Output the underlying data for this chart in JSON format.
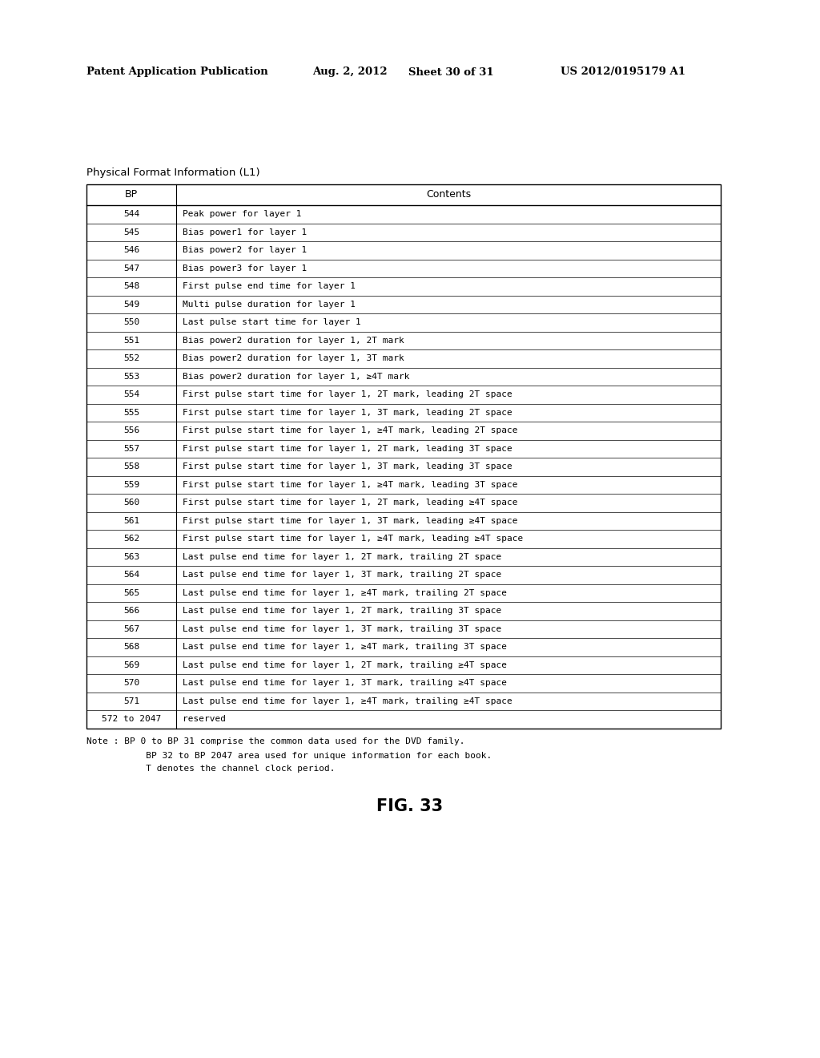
{
  "header_text": "Patent Application Publication",
  "date_text": "Aug. 2, 2012",
  "sheet_text": "Sheet 30 of 31",
  "patent_text": "US 2012/0195179 A1",
  "table_title": "Physical Format Information (L1)",
  "col1_header": "BP",
  "col2_header": "Contents",
  "rows": [
    [
      "544",
      "Peak power for layer 1"
    ],
    [
      "545",
      "Bias power1 for layer 1"
    ],
    [
      "546",
      "Bias power2 for layer 1"
    ],
    [
      "547",
      "Bias power3 for layer 1"
    ],
    [
      "548",
      "First pulse end time for layer 1"
    ],
    [
      "549",
      "Multi pulse duration for layer 1"
    ],
    [
      "550",
      "Last pulse start time for layer 1"
    ],
    [
      "551",
      "Bias power2 duration for layer 1, 2T mark"
    ],
    [
      "552",
      "Bias power2 duration for layer 1, 3T mark"
    ],
    [
      "553",
      "Bias power2 duration for layer 1, ≥4T mark"
    ],
    [
      "554",
      "First pulse start time for layer 1, 2T mark, leading 2T space"
    ],
    [
      "555",
      "First pulse start time for layer 1, 3T mark, leading 2T space"
    ],
    [
      "556",
      "First pulse start time for layer 1, ≥4T mark, leading 2T space"
    ],
    [
      "557",
      "First pulse start time for layer 1, 2T mark, leading 3T space"
    ],
    [
      "558",
      "First pulse start time for layer 1, 3T mark, leading 3T space"
    ],
    [
      "559",
      "First pulse start time for layer 1, ≥4T mark, leading 3T space"
    ],
    [
      "560",
      "First pulse start time for layer 1, 2T mark, leading ≥4T space"
    ],
    [
      "561",
      "First pulse start time for layer 1, 3T mark, leading ≥4T space"
    ],
    [
      "562",
      "First pulse start time for layer 1, ≥4T mark, leading ≥4T space"
    ],
    [
      "563",
      "Last pulse end time for layer 1, 2T mark, trailing 2T space"
    ],
    [
      "564",
      "Last pulse end time for layer 1, 3T mark, trailing 2T space"
    ],
    [
      "565",
      "Last pulse end time for layer 1, ≥4T mark, trailing 2T space"
    ],
    [
      "566",
      "Last pulse end time for layer 1, 2T mark, trailing 3T space"
    ],
    [
      "567",
      "Last pulse end time for layer 1, 3T mark, trailing 3T space"
    ],
    [
      "568",
      "Last pulse end time for layer 1, ≥4T mark, trailing 3T space"
    ],
    [
      "569",
      "Last pulse end time for layer 1, 2T mark, trailing ≥4T space"
    ],
    [
      "570",
      "Last pulse end time for layer 1, 3T mark, trailing ≥4T space"
    ],
    [
      "571",
      "Last pulse end time for layer 1, ≥4T mark, trailing ≥4T space"
    ],
    [
      "572 to 2047",
      "reserved"
    ]
  ],
  "note_lines": [
    "Note : BP 0 to BP 31 comprise the common data used for the DVD family.",
    "           BP 32 to BP 2047 area used for unique information for each book.",
    "           T denotes the channel clock period."
  ],
  "fig_label": "FIG. 33",
  "bg_color": "#ffffff",
  "text_color": "#000000",
  "table_font_size": 8.0,
  "header_font_size": 9.0,
  "note_font_size": 8.0,
  "fig_font_size": 15,
  "page_header_fontsize": 9.5,
  "table_title_fontsize": 9.5
}
